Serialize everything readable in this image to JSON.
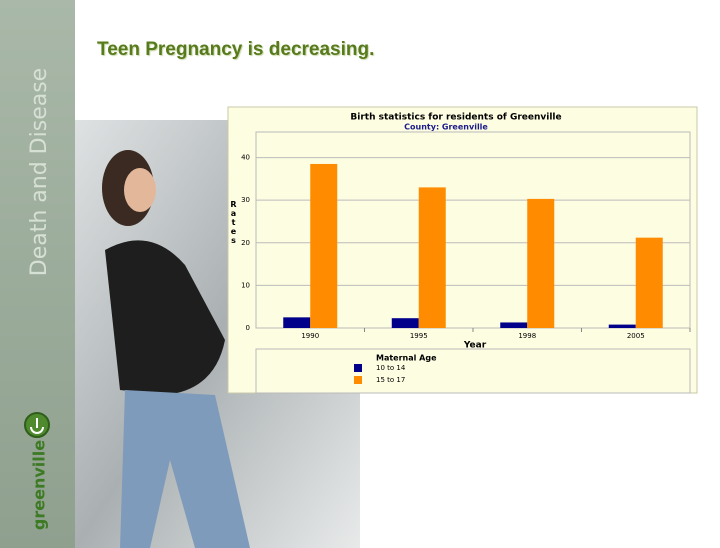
{
  "slide": {
    "title": "Teen Pregnancy is decreasing.",
    "section": "Death and Disease",
    "logo": "greenville"
  },
  "chart_data": {
    "type": "bar",
    "title": "Birth statistics for residents of Greenville",
    "subtitle": "County: Greenville",
    "x_label": "Year",
    "y_label": "Rates",
    "legend_title": "Maternal Age",
    "categories": [
      "1990",
      "1995",
      "1998",
      "2005"
    ],
    "series": [
      {
        "name": "10 to 14",
        "color": "#00008b",
        "values": [
          2.5,
          2.3,
          1.3,
          0.8
        ]
      },
      {
        "name": "15 to 17",
        "color": "#ff8c00",
        "values": [
          38.5,
          33,
          30.3,
          21.2
        ]
      }
    ],
    "ylim": [
      0,
      46
    ],
    "yticks": [
      0,
      10,
      20,
      30,
      40
    ],
    "grid": true
  }
}
